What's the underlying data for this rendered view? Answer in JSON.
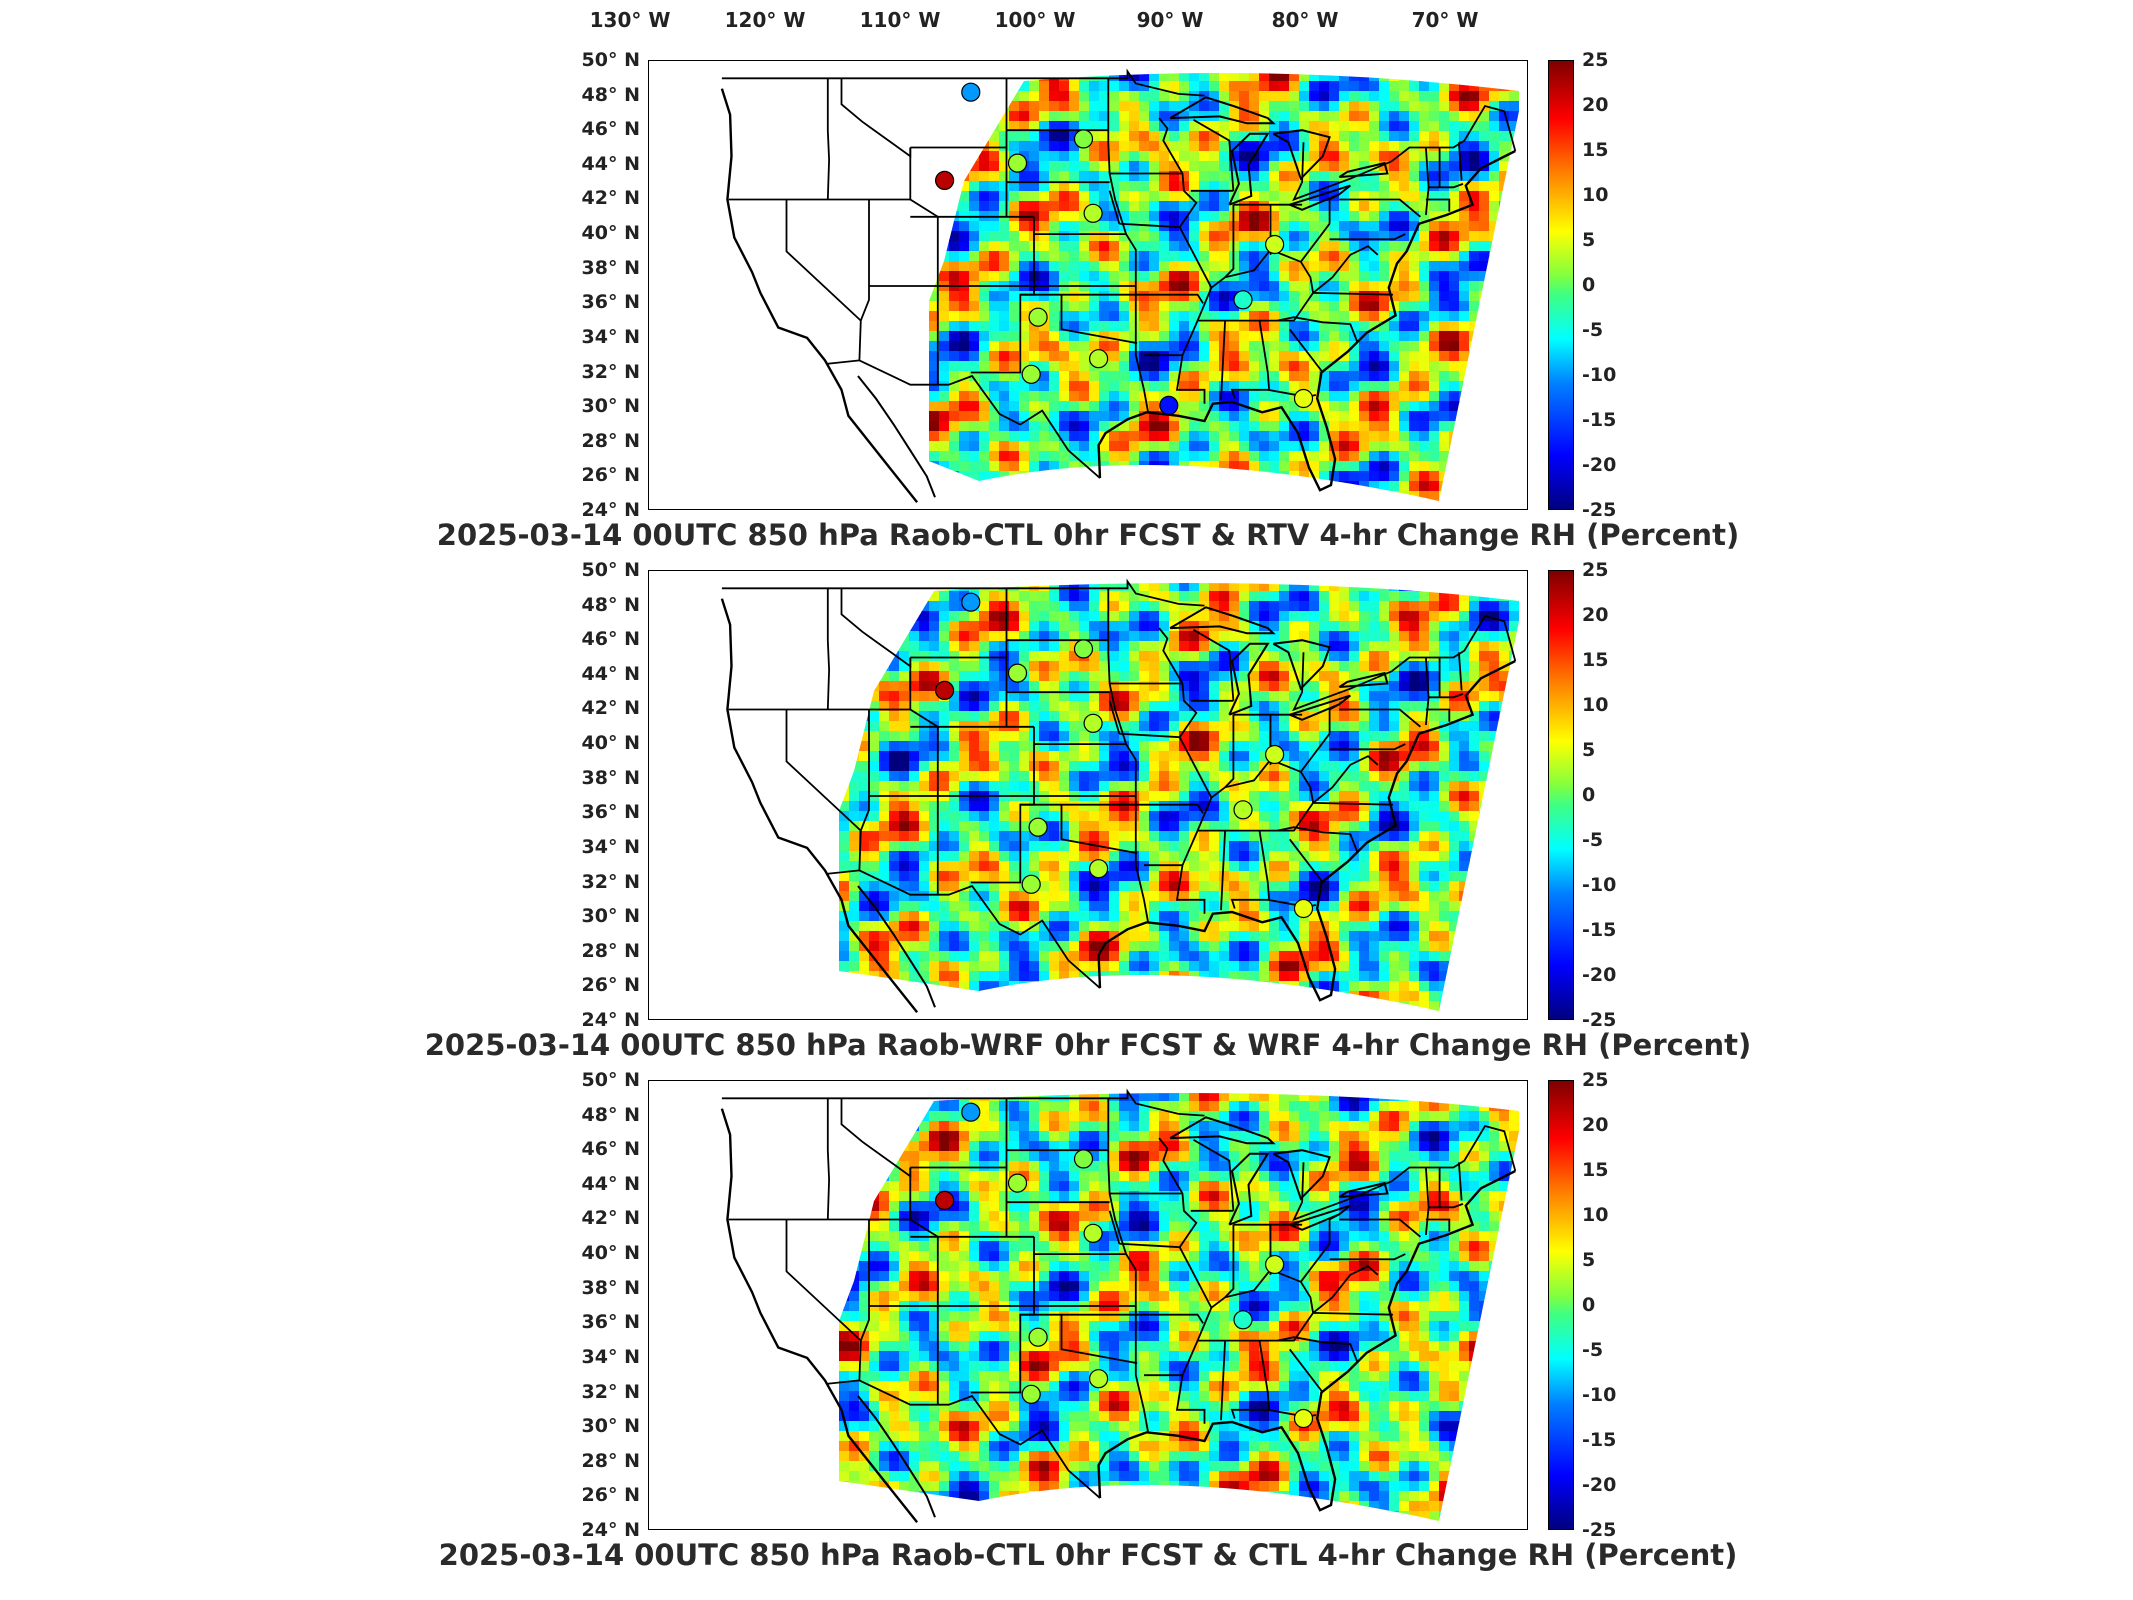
{
  "longitude_labels": [
    "130° W",
    "120° W",
    "110° W",
    "100° W",
    "90° W",
    "80° W",
    "70° W"
  ],
  "latitude_labels": [
    "50° N",
    "48° N",
    "46° N",
    "44° N",
    "42° N",
    "40° N",
    "38° N",
    "36° N",
    "34° N",
    "32° N",
    "30° N",
    "28° N",
    "26° N",
    "24° N"
  ],
  "colorbar": {
    "ticks": [
      "25",
      "20",
      "15",
      "10",
      "5",
      "0",
      "-5",
      "-10",
      "-15",
      "-20",
      "-25"
    ],
    "min": -25,
    "max": 25
  },
  "panels": [
    {
      "title": "2025-03-14 00UTC 850 hPa Raob-CTL 0hr FCST & RTV 4-hr Change RH (Percent)",
      "raob_stations": [
        {
          "lon": -106.6,
          "lat": 48.2,
          "value": -10
        },
        {
          "lon": -108.5,
          "lat": 43.1,
          "value": 22
        },
        {
          "lon": -103.2,
          "lat": 44.1,
          "value": 2
        },
        {
          "lon": -98.4,
          "lat": 45.5,
          "value": 1
        },
        {
          "lon": -97.7,
          "lat": 41.2,
          "value": 3
        },
        {
          "lon": -101.7,
          "lat": 35.2,
          "value": 2
        },
        {
          "lon": -102.2,
          "lat": 31.9,
          "value": 2
        },
        {
          "lon": -97.3,
          "lat": 32.8,
          "value": 3
        },
        {
          "lon": -92.2,
          "lat": 30.1,
          "value": -18
        },
        {
          "lon": -86.8,
          "lat": 36.2,
          "value": -4
        },
        {
          "lon": -84.5,
          "lat": 39.4,
          "value": 4
        },
        {
          "lon": -82.4,
          "lat": 30.5,
          "value": 5
        }
      ]
    },
    {
      "title": "2025-03-14 00UTC 850 hPa Raob-WRF 0hr FCST & WRF 4-hr Change RH (Percent)",
      "raob_stations": [
        {
          "lon": -106.6,
          "lat": 48.2,
          "value": -10
        },
        {
          "lon": -108.5,
          "lat": 43.1,
          "value": 22
        },
        {
          "lon": -103.2,
          "lat": 44.1,
          "value": 2
        },
        {
          "lon": -98.4,
          "lat": 45.5,
          "value": 1
        },
        {
          "lon": -97.7,
          "lat": 41.2,
          "value": 3
        },
        {
          "lon": -101.7,
          "lat": 35.2,
          "value": 2
        },
        {
          "lon": -102.2,
          "lat": 31.9,
          "value": 2
        },
        {
          "lon": -97.3,
          "lat": 32.8,
          "value": 3
        },
        {
          "lon": -86.8,
          "lat": 36.2,
          "value": 3
        },
        {
          "lon": -84.5,
          "lat": 39.4,
          "value": 4
        },
        {
          "lon": -82.4,
          "lat": 30.5,
          "value": 5
        }
      ]
    },
    {
      "title": "2025-03-14 00UTC 850 hPa Raob-CTL 0hr FCST & CTL 4-hr Change RH (Percent)",
      "raob_stations": [
        {
          "lon": -106.6,
          "lat": 48.2,
          "value": -10
        },
        {
          "lon": -108.5,
          "lat": 43.1,
          "value": 22
        },
        {
          "lon": -103.2,
          "lat": 44.1,
          "value": 2
        },
        {
          "lon": -98.4,
          "lat": 45.5,
          "value": 1
        },
        {
          "lon": -97.7,
          "lat": 41.2,
          "value": 3
        },
        {
          "lon": -101.7,
          "lat": 35.2,
          "value": 2
        },
        {
          "lon": -102.2,
          "lat": 31.9,
          "value": 2
        },
        {
          "lon": -97.3,
          "lat": 32.8,
          "value": 3
        },
        {
          "lon": -86.8,
          "lat": 36.2,
          "value": -4
        },
        {
          "lon": -84.5,
          "lat": 39.4,
          "value": 4
        },
        {
          "lon": -82.4,
          "lat": 30.5,
          "value": 5
        }
      ]
    }
  ]
}
